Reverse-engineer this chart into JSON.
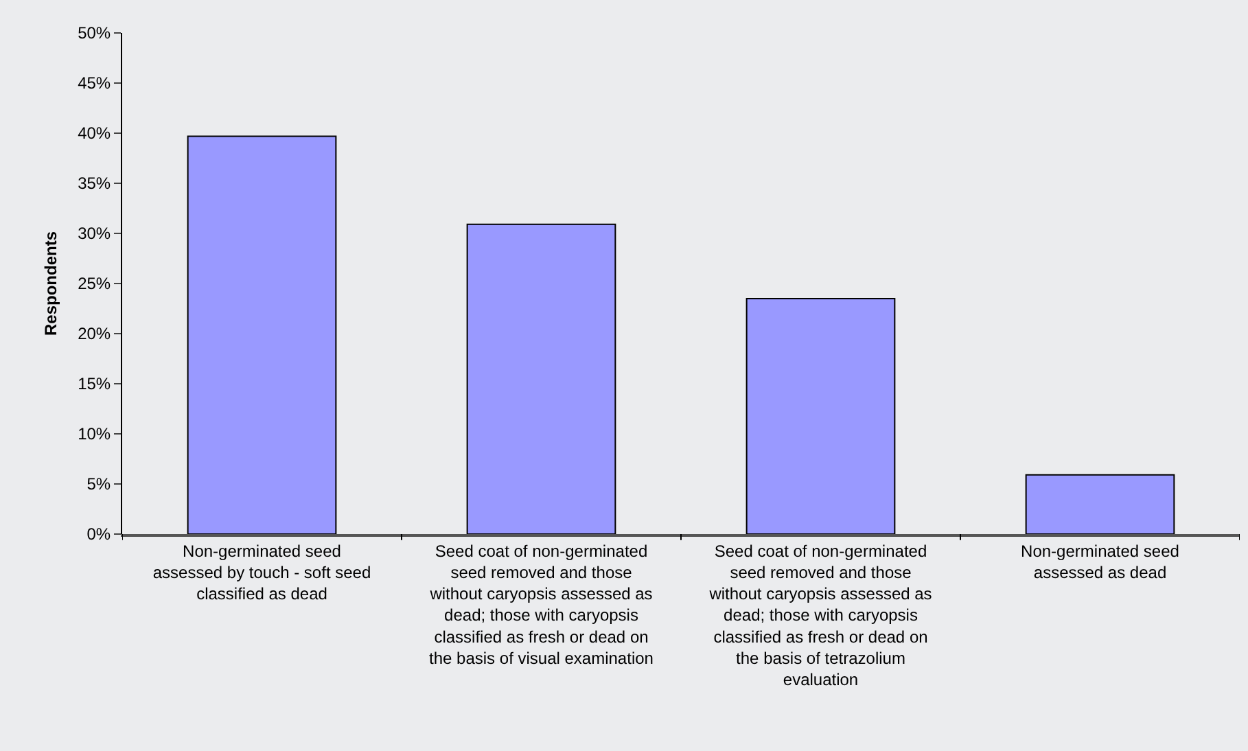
{
  "chart_data": {
    "type": "bar",
    "ylabel": "Respondents",
    "categories": [
      "Non-germinated seed\nassessed by touch - soft seed\nclassified as dead",
      "Seed coat of non-germinated\nseed removed and those\nwithout caryopsis assessed as\ndead; those with caryopsis\nclassified as fresh or dead on\nthe basis of visual examination",
      "Seed coat of non-germinated\nseed removed and those\nwithout caryopsis assessed as\ndead; those with caryopsis\nclassified as fresh or dead on\nthe basis of tetrazolium\nevaluation",
      "Non-germinated seed\nassessed as dead"
    ],
    "values": [
      39.7,
      30.9,
      23.5,
      5.9
    ],
    "color": "#9999ff",
    "ylim": [
      0,
      50
    ],
    "yticks": [
      {
        "value": 0,
        "label": "0%"
      },
      {
        "value": 5,
        "label": "5%"
      },
      {
        "value": 10,
        "label": "10%"
      },
      {
        "value": 15,
        "label": "15%"
      },
      {
        "value": 20,
        "label": "20%"
      },
      {
        "value": 25,
        "label": "25%"
      },
      {
        "value": 30,
        "label": "30%"
      },
      {
        "value": 35,
        "label": "35%"
      },
      {
        "value": 40,
        "label": "40%"
      },
      {
        "value": 45,
        "label": "45%"
      },
      {
        "value": 50,
        "label": "50%"
      }
    ],
    "grid": false,
    "legend": false
  }
}
